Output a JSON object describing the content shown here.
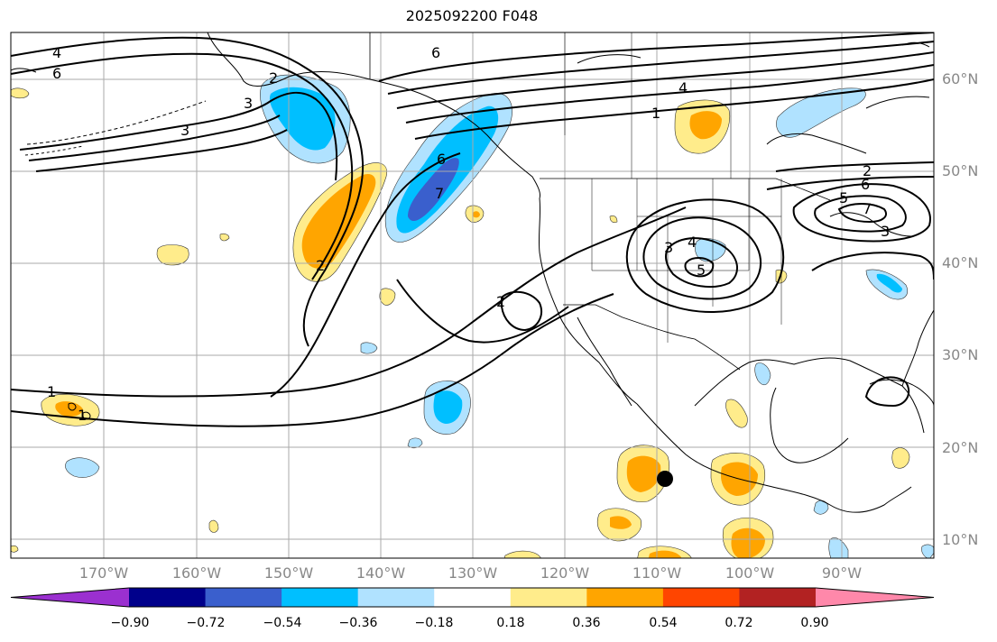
{
  "title": "2025092200 F048",
  "lat_labels": [
    "60°N",
    "50°N",
    "40°N",
    "30°N",
    "20°N",
    "10°N"
  ],
  "lon_labels": [
    "170°W",
    "160°W",
    "150°W",
    "140°W",
    "130°W",
    "120°W",
    "110°W",
    "100°W",
    "90°W"
  ],
  "colorbar": {
    "ticks": [
      "−0.90",
      "−0.72",
      "−0.54",
      "−0.36",
      "−0.18",
      "0.18",
      "0.36",
      "0.54",
      "0.72",
      "0.90"
    ],
    "colors": [
      "#9b30d0",
      "#00008b",
      "#3a5fcd",
      "#00bfff",
      "#b0e2ff",
      "#ffffff",
      "#ffec8b",
      "#ffa500",
      "#ff4500",
      "#b22222",
      "#ff88aa"
    ]
  },
  "contour_labels": [
    "4",
    "6",
    "6",
    "4",
    "1",
    "2",
    "2",
    "3",
    "6",
    "7",
    "4",
    "3",
    "5",
    "2",
    "1",
    "1",
    "2",
    "3",
    "6",
    "7",
    "5",
    "3"
  ],
  "marker": "storm-position"
}
